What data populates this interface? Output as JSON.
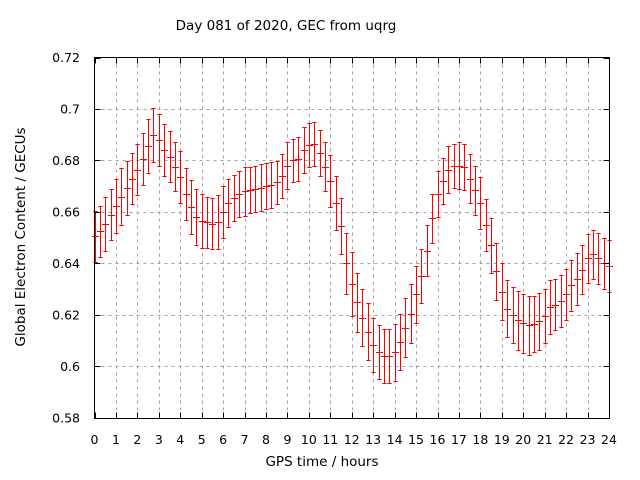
{
  "page": {
    "background": "#ffffff"
  },
  "chart_data": {
    "type": "scatter",
    "style": "yerrorbars",
    "title": "Day 081 of 2020, GEC from uqrg",
    "xlabel": "GPS time / hours",
    "ylabel": "Global Electron Content / GECUs",
    "xlim": [
      0,
      24
    ],
    "ylim": [
      0.58,
      0.72
    ],
    "x_tick_labels": [
      "0",
      "1",
      "2",
      "3",
      "4",
      "5",
      "6",
      "7",
      "8",
      "9",
      "10",
      "11",
      "12",
      "13",
      "14",
      "15",
      "16",
      "17",
      "18",
      "19",
      "20",
      "21",
      "22",
      "23",
      "24"
    ],
    "x_tick_values": [
      0,
      1,
      2,
      3,
      4,
      5,
      6,
      7,
      8,
      9,
      10,
      11,
      12,
      13,
      14,
      15,
      16,
      17,
      18,
      19,
      20,
      21,
      22,
      23,
      24
    ],
    "y_tick_labels": [
      "0.58",
      "0.6",
      "0.62",
      "0.64",
      "0.66",
      "0.68",
      "0.7",
      "0.72"
    ],
    "y_tick_values": [
      0.58,
      0.6,
      0.62,
      0.64,
      0.66,
      0.68,
      0.7,
      0.72
    ],
    "grid": true,
    "grid_style": "dashed",
    "legend": "none",
    "series_color": "#ff0000",
    "grid_color": "#a0a0a0",
    "axis_color": "#000000",
    "x": [
      0,
      0.25,
      0.5,
      0.75,
      1,
      1.25,
      1.5,
      1.75,
      2,
      2.25,
      2.5,
      2.75,
      3,
      3.25,
      3.5,
      3.75,
      4,
      4.25,
      4.5,
      4.75,
      5,
      5.25,
      5.5,
      5.75,
      6,
      6.25,
      6.5,
      6.75,
      7,
      7.25,
      7.5,
      7.75,
      8,
      8.25,
      8.5,
      8.75,
      9,
      9.25,
      9.5,
      9.75,
      10,
      10.25,
      10.5,
      10.75,
      11,
      11.25,
      11.5,
      11.75,
      12,
      12.25,
      12.5,
      12.75,
      13,
      13.25,
      13.5,
      13.75,
      14,
      14.25,
      14.5,
      14.75,
      15,
      15.25,
      15.5,
      15.75,
      16,
      16.25,
      16.5,
      16.75,
      17,
      17.25,
      17.5,
      17.75,
      18,
      18.25,
      18.5,
      18.75,
      19,
      19.25,
      19.5,
      19.75,
      20,
      20.25,
      20.5,
      20.75,
      21,
      21.25,
      21.5,
      21.75,
      22,
      22.25,
      22.5,
      22.75,
      23,
      23.25,
      23.5,
      23.75,
      24
    ],
    "y": [
      0.6505,
      0.6525,
      0.6555,
      0.659,
      0.6625,
      0.666,
      0.6695,
      0.673,
      0.6765,
      0.6805,
      0.6855,
      0.69,
      0.688,
      0.684,
      0.6815,
      0.6775,
      0.6735,
      0.667,
      0.662,
      0.658,
      0.6565,
      0.656,
      0.6555,
      0.656,
      0.66,
      0.6635,
      0.6655,
      0.667,
      0.668,
      0.6685,
      0.669,
      0.6695,
      0.67,
      0.6705,
      0.6715,
      0.674,
      0.678,
      0.68,
      0.6805,
      0.684,
      0.686,
      0.6865,
      0.683,
      0.6775,
      0.672,
      0.6635,
      0.6545,
      0.64,
      0.632,
      0.625,
      0.619,
      0.6135,
      0.6085,
      0.6055,
      0.604,
      0.604,
      0.6055,
      0.6095,
      0.615,
      0.6205,
      0.628,
      0.635,
      0.645,
      0.6575,
      0.667,
      0.672,
      0.6765,
      0.678,
      0.678,
      0.6775,
      0.673,
      0.6685,
      0.6635,
      0.655,
      0.647,
      0.637,
      0.629,
      0.6225,
      0.62,
      0.618,
      0.6168,
      0.616,
      0.6165,
      0.6175,
      0.6195,
      0.623,
      0.624,
      0.6255,
      0.628,
      0.6315,
      0.634,
      0.6375,
      0.642,
      0.6435,
      0.642,
      0.64,
      0.639
    ],
    "yerr": [
      0.01,
      0.01,
      0.0105,
      0.01,
      0.0105,
      0.011,
      0.0105,
      0.01,
      0.01,
      0.01,
      0.0105,
      0.0105,
      0.01,
      0.01,
      0.01,
      0.0095,
      0.01,
      0.01,
      0.0105,
      0.011,
      0.0105,
      0.01,
      0.01,
      0.0105,
      0.01,
      0.0095,
      0.009,
      0.009,
      0.0095,
      0.009,
      0.009,
      0.009,
      0.009,
      0.009,
      0.0085,
      0.0085,
      0.009,
      0.0085,
      0.0085,
      0.009,
      0.0085,
      0.0085,
      0.009,
      0.0095,
      0.01,
      0.0105,
      0.011,
      0.012,
      0.0125,
      0.0115,
      0.011,
      0.011,
      0.0105,
      0.0105,
      0.0105,
      0.0105,
      0.011,
      0.011,
      0.0115,
      0.0115,
      0.011,
      0.0105,
      0.01,
      0.0095,
      0.009,
      0.009,
      0.009,
      0.0085,
      0.009,
      0.009,
      0.0095,
      0.0095,
      0.01,
      0.01,
      0.0105,
      0.011,
      0.011,
      0.011,
      0.011,
      0.0115,
      0.0115,
      0.0115,
      0.011,
      0.011,
      0.0105,
      0.0105,
      0.01,
      0.01,
      0.01,
      0.01,
      0.01,
      0.0095,
      0.0095,
      0.0095,
      0.01,
      0.01,
      0.01
    ]
  }
}
